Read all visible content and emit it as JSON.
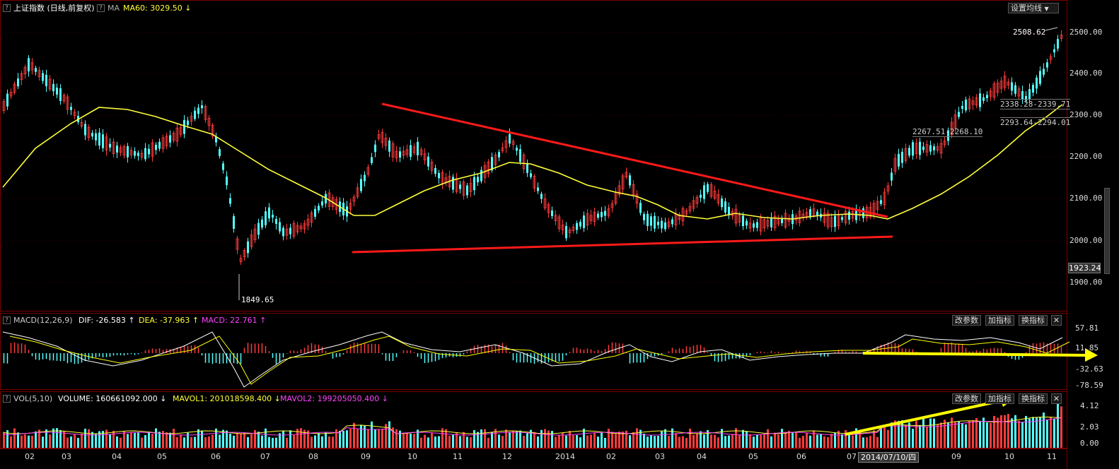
{
  "header": {
    "title": "上证指数",
    "subtitle": "(日线,前复权)",
    "ma_toggle": "MA",
    "ma60_text": "MA60: 3029.50",
    "ma60_arrow": "↓",
    "settings_button": "设置均线"
  },
  "price_pane": {
    "y_ticks": [
      "2500.00",
      "2400.00",
      "2300.00",
      "2200.00",
      "2100.00",
      "2000.00",
      "1900.00"
    ],
    "current_price": "1923.24",
    "high_label": "2508.62",
    "low_label": "1849.65",
    "annotations": [
      "2338.28-2339.71",
      "2293.64-2294.01",
      "2267.51-2268.10"
    ]
  },
  "macd_pane": {
    "title": "MACD(12,26,9)",
    "dif": "DIF: -26.583",
    "dif_arrow": "↑",
    "dea": "DEA: -37.963",
    "dea_arrow": "↑",
    "macd": "MACD: 22.761",
    "macd_arrow": "↑",
    "y_ticks": [
      "57.81",
      "11.85",
      "-32.63",
      "-78.59"
    ],
    "buttons": [
      "改参数",
      "加指标",
      "换指标"
    ]
  },
  "vol_pane": {
    "title": "VOL(5,10)",
    "volume": "VOLUME: 160661092.000",
    "volume_arrow": "↓",
    "mavol1": "MAVOL1: 201018598.400",
    "mavol1_arrow": "↓",
    "mavol2": "MAVOL2: 199205050.400",
    "mavol2_arrow": "↓",
    "y_ticks": [
      "4.12",
      "2.03",
      "0.00"
    ],
    "buttons": [
      "改参数",
      "加指标",
      "换指标"
    ]
  },
  "x_axis": {
    "labels": [
      "02",
      "03",
      "04",
      "05",
      "06",
      "07",
      "08",
      "09",
      "10",
      "11",
      "12",
      "2014",
      "02",
      "03",
      "04",
      "05",
      "06",
      "07",
      "09",
      "10",
      "11"
    ],
    "cursor_date": "2014/07/10/四"
  },
  "colors": {
    "up": "#ff3c3c",
    "down": "#54ffff",
    "ma": "#ffff3a",
    "trendline": "#ff1a1a",
    "arrow": "#ffff00",
    "dif": "#ffffff",
    "dea": "#ffff00",
    "mavol2": "#ff44ff"
  },
  "icons": [
    "close-icon",
    "dropdown-arrow-icon",
    "help-icon",
    "scroll-handle-icon"
  ]
}
